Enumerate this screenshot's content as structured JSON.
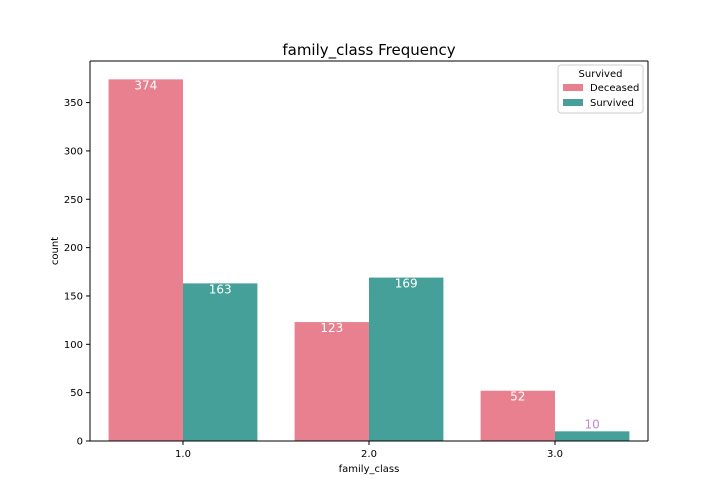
{
  "chart_data": {
    "type": "bar",
    "title": "family_class Frequency",
    "xlabel": "family_class",
    "ylabel": "count",
    "categories": [
      "1.0",
      "2.0",
      "3.0"
    ],
    "ylim": [
      0,
      393
    ],
    "yticks": [
      0,
      50,
      100,
      150,
      200,
      250,
      300,
      350
    ],
    "grid": false,
    "legend": {
      "title": "Survived",
      "placement": "top-right"
    },
    "series": [
      {
        "name": "Deceased",
        "color": "#e8808f",
        "values": [
          374,
          123,
          52
        ],
        "labels": [
          "374",
          "123",
          "52"
        ]
      },
      {
        "name": "Survived",
        "color": "#44a099",
        "values": [
          163,
          169,
          10
        ],
        "labels": [
          "163",
          "169",
          "10"
        ]
      }
    ],
    "label_colors": {
      "default": "#ffffff",
      "low": "#c18ad9"
    }
  }
}
